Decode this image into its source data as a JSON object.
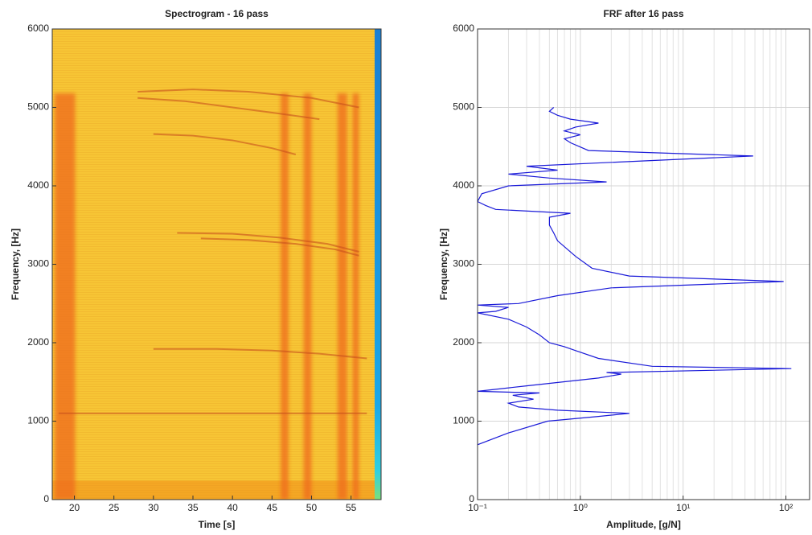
{
  "chart_data": [
    {
      "type": "heatmap",
      "title": "Spectrogram - 16 pass",
      "xlabel": "Time [s]",
      "ylabel": "Frequency, [Hz]",
      "xlim": [
        17.2,
        58.8
      ],
      "ylim": [
        0,
        6000
      ],
      "xticks": [
        20,
        25,
        30,
        35,
        40,
        45,
        50,
        55
      ],
      "yticks": [
        0,
        1000,
        2000,
        3000,
        4000,
        5000,
        6000
      ],
      "background_color": "#f7c535",
      "low_color": "#f29a1e",
      "band_color": "#ef6a1a",
      "ridge_color": "#c8501c",
      "bands": [
        {
          "x": 18.8,
          "width": 2.6
        },
        {
          "x": 46.6,
          "width": 1.0
        },
        {
          "x": 49.5,
          "width": 1.0
        },
        {
          "x": 53.9,
          "width": 1.2
        },
        {
          "x": 55.6,
          "width": 0.8
        }
      ],
      "ridges": [
        {
          "x": [
            28,
            35,
            42,
            50,
            56
          ],
          "y": [
            5200,
            5230,
            5200,
            5120,
            5000
          ]
        },
        {
          "x": [
            28,
            34,
            40,
            46,
            51
          ],
          "y": [
            5120,
            5080,
            5000,
            4920,
            4850
          ]
        },
        {
          "x": [
            30,
            35,
            40,
            45,
            48
          ],
          "y": [
            4660,
            4640,
            4580,
            4480,
            4400
          ]
        },
        {
          "x": [
            33,
            40,
            46,
            52,
            56
          ],
          "y": [
            3400,
            3390,
            3340,
            3260,
            3160
          ]
        },
        {
          "x": [
            36,
            42,
            48,
            53,
            56
          ],
          "y": [
            3330,
            3310,
            3260,
            3190,
            3110
          ]
        },
        {
          "x": [
            30,
            38,
            45,
            51,
            57
          ],
          "y": [
            1920,
            1920,
            1900,
            1860,
            1800
          ]
        },
        {
          "x": [
            18,
            30,
            42,
            50,
            57
          ],
          "y": [
            1100,
            1100,
            1100,
            1100,
            1100
          ]
        }
      ]
    },
    {
      "type": "line",
      "title": "FRF after 16 pass",
      "xlabel": "Amplitude, [g/N]",
      "ylabel": "Frequency, [Hz]",
      "xscale": "log",
      "xlim": [
        0.1,
        170
      ],
      "ylim": [
        0,
        6000
      ],
      "grid": true,
      "minor_grid": true,
      "color": "#1a1ad8",
      "xticks": [
        {
          "value": 0.1,
          "label": "10⁻¹"
        },
        {
          "value": 1,
          "label": "10⁰"
        },
        {
          "value": 10,
          "label": "10¹"
        },
        {
          "value": 100,
          "label": "10²"
        }
      ],
      "yticks": [
        0,
        1000,
        2000,
        3000,
        4000,
        5000,
        6000
      ],
      "x": [
        0.1,
        0.2,
        0.48,
        1.5,
        3.0,
        0.6,
        0.25,
        0.2,
        0.35,
        0.22,
        0.4,
        0.1,
        0.3,
        1.5,
        2.5,
        1.8,
        113,
        5,
        1.5,
        0.9,
        0.7,
        0.5,
        0.4,
        0.3,
        0.2,
        0.1,
        0.15,
        0.2,
        0.1,
        0.25,
        0.6,
        2,
        95,
        3,
        1.3,
        0.9,
        0.6,
        0.55,
        0.5,
        0.5,
        0.8,
        0.15,
        0.12,
        0.1,
        0.11,
        0.2,
        1.8,
        0.5,
        0.2,
        0.6,
        0.3,
        2,
        48,
        1.2,
        0.8,
        0.7,
        1.0,
        0.7,
        0.9,
        1.5,
        0.8,
        0.6,
        0.5,
        0.55
      ],
      "y": [
        700,
        850,
        1000,
        1060,
        1100,
        1140,
        1180,
        1230,
        1280,
        1330,
        1360,
        1380,
        1450,
        1550,
        1600,
        1620,
        1670,
        1700,
        1800,
        1900,
        1950,
        2000,
        2100,
        2200,
        2300,
        2380,
        2400,
        2450,
        2480,
        2500,
        2600,
        2700,
        2780,
        2850,
        2950,
        3100,
        3300,
        3400,
        3500,
        3600,
        3650,
        3700,
        3750,
        3800,
        3900,
        4000,
        4050,
        4100,
        4150,
        4200,
        4250,
        4300,
        4380,
        4450,
        4550,
        4600,
        4650,
        4700,
        4750,
        4800,
        4850,
        4900,
        4950,
        5000
      ]
    }
  ]
}
